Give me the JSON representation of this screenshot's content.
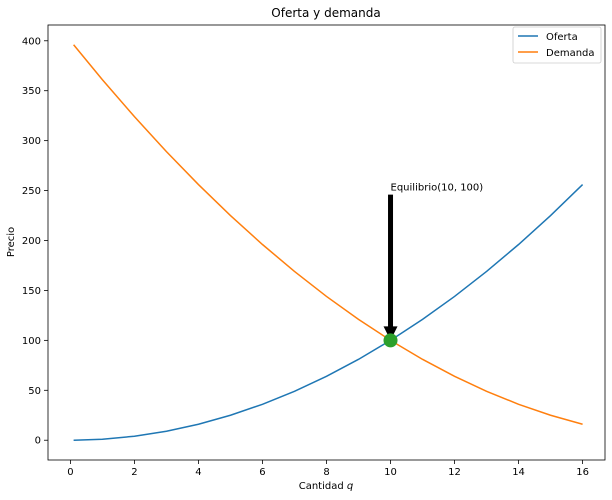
{
  "chart_data": {
    "type": "line",
    "title": "Oferta y demanda",
    "xlabel": "Cantidad q",
    "ylabel": "Precio",
    "xlim": [
      -0.7,
      16.7
    ],
    "ylim": [
      -19.8,
      415.8
    ],
    "xticks": [
      0,
      2,
      4,
      6,
      8,
      10,
      12,
      14,
      16
    ],
    "yticks": [
      0,
      50,
      100,
      150,
      200,
      250,
      300,
      350,
      400
    ],
    "grid": false,
    "legend_position": "top-right",
    "series": [
      {
        "name": "Oferta",
        "color": "#1f77b4",
        "x": [
          0.1,
          1,
          2,
          3,
          4,
          5,
          6,
          7,
          8,
          9,
          10,
          11,
          12,
          13,
          14,
          15,
          16
        ],
        "y": [
          0.01,
          1,
          4,
          9,
          16,
          25,
          36,
          49,
          64,
          81,
          100,
          121,
          144,
          169,
          196,
          225,
          256
        ]
      },
      {
        "name": "Demanda",
        "color": "#ff7f0e",
        "x": [
          0.1,
          1,
          2,
          3,
          4,
          5,
          6,
          7,
          8,
          9,
          10,
          11,
          12,
          13,
          14,
          15,
          16
        ],
        "y": [
          396.01,
          361,
          324,
          289,
          256,
          225,
          196,
          169,
          144,
          121,
          100,
          81,
          64,
          49,
          36,
          25,
          16
        ]
      }
    ],
    "equilibrium": {
      "x": 10,
      "y": 100,
      "color": "#2ca02c"
    },
    "annotation": {
      "text": "Equilibrio(10, 100)",
      "x": 10,
      "y": 250
    }
  }
}
